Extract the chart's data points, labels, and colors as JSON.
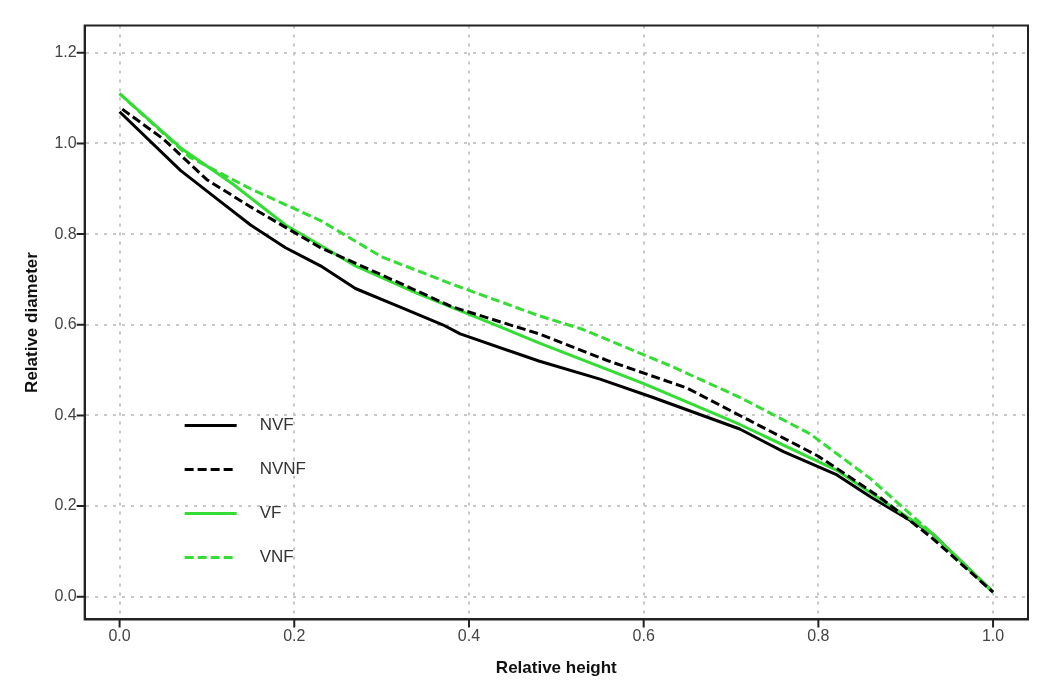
{
  "chart_data": {
    "type": "line",
    "xlabel": "Relative height",
    "ylabel": "Relative diameter",
    "xlim": [
      -0.04,
      1.04
    ],
    "xticks": [
      {
        "value": 0,
        "label": "0.0"
      },
      {
        "value": 0.2,
        "label": "0.2"
      },
      {
        "value": 0.4,
        "label": "0.4"
      },
      {
        "value": 0.6,
        "label": "0.6"
      },
      {
        "value": 0.8,
        "label": "0.8"
      },
      {
        "value": 1,
        "label": "1.0"
      }
    ],
    "ylim": [
      -0.05,
      1.26
    ],
    "yticks": [
      {
        "value": 0,
        "label": "0.0"
      },
      {
        "value": 0.2,
        "label": "0.2"
      },
      {
        "value": 0.4,
        "label": "0.4"
      },
      {
        "value": 0.6,
        "label": "0.6"
      },
      {
        "value": 0.8,
        "label": "0.8"
      },
      {
        "value": 1,
        "label": "1.0"
      },
      {
        "value": 1.2,
        "label": "1.2"
      }
    ],
    "grid": true,
    "legend": "bottom left",
    "marker": "none",
    "series": [
      {
        "name": "NVF",
        "color": "#000000",
        "line_style": "solid",
        "x": [
          0.0,
          0.07,
          0.11,
          0.15,
          0.19,
          0.23,
          0.27,
          0.32,
          0.37,
          0.39,
          0.48,
          0.55,
          0.61,
          0.71,
          0.76,
          0.82,
          0.86,
          0.93,
          1.0
        ],
        "values": [
          1.07,
          0.94,
          0.88,
          0.82,
          0.77,
          0.73,
          0.68,
          0.64,
          0.6,
          0.58,
          0.52,
          0.48,
          0.44,
          0.37,
          0.32,
          0.27,
          0.22,
          0.14,
          0.01
        ]
      },
      {
        "name": "NVNF",
        "color": "#000000",
        "line_style": "dashed",
        "x": [
          0.0,
          0.05,
          0.1,
          0.15,
          0.23,
          0.3,
          0.38,
          0.43,
          0.48,
          0.56,
          0.65,
          0.72,
          0.8,
          0.87,
          0.93,
          1.0
        ],
        "values": [
          1.08,
          1.01,
          0.92,
          0.86,
          0.77,
          0.71,
          0.64,
          0.61,
          0.58,
          0.52,
          0.46,
          0.39,
          0.31,
          0.22,
          0.13,
          0.01
        ]
      },
      {
        "name": "VF",
        "color": "#33dd33",
        "line_style": "solid",
        "x": [
          0.0,
          0.07,
          0.13,
          0.19,
          0.27,
          0.34,
          0.43,
          0.48,
          0.6,
          0.71,
          0.82,
          0.93,
          1.0
        ],
        "values": [
          1.11,
          0.99,
          0.91,
          0.82,
          0.73,
          0.67,
          0.6,
          0.56,
          0.47,
          0.38,
          0.28,
          0.14,
          0.01
        ]
      },
      {
        "name": "VNF",
        "color": "#33dd33",
        "line_style": "dashed",
        "x": [
          0.0,
          0.08,
          0.15,
          0.23,
          0.3,
          0.38,
          0.48,
          0.53,
          0.63,
          0.71,
          0.79,
          0.86,
          0.93,
          1.0
        ],
        "values": [
          1.11,
          0.97,
          0.9,
          0.83,
          0.75,
          0.69,
          0.62,
          0.59,
          0.51,
          0.44,
          0.36,
          0.26,
          0.14,
          0.01
        ]
      }
    ]
  }
}
